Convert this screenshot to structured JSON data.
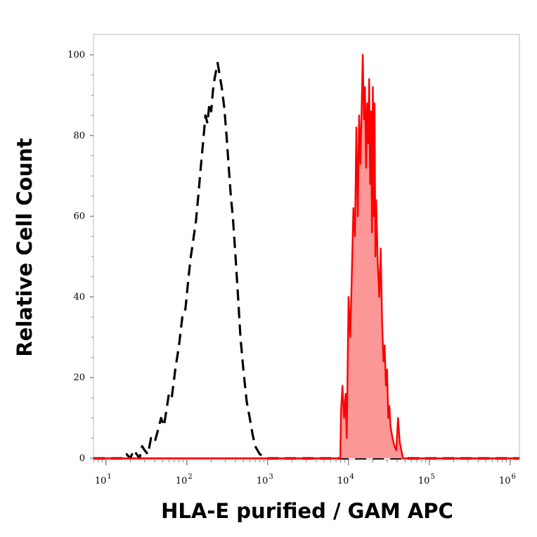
{
  "chart_data": {
    "type": "area",
    "xlabel": "HLA-E purified / GAM APC",
    "ylabel": "Relative Cell Count",
    "xscale": "log",
    "xlim": [
      7,
      1300000
    ],
    "ylim": [
      0,
      100
    ],
    "x_ticks": [
      {
        "base": "10",
        "exp": "1",
        "value": 10
      },
      {
        "base": "10",
        "exp": "2",
        "value": 100
      },
      {
        "base": "10",
        "exp": "3",
        "value": 1000
      },
      {
        "base": "10",
        "exp": "4",
        "value": 10000
      },
      {
        "base": "10",
        "exp": "5",
        "value": 100000
      },
      {
        "base": "10",
        "exp": "6",
        "value": 1000000
      }
    ],
    "y_ticks": [
      "0",
      "20",
      "40",
      "60",
      "80",
      "100"
    ],
    "grid": false,
    "series": [
      {
        "style": "dashed",
        "fill": false,
        "color": "#000000",
        "x": [
          7,
          17,
          18,
          20,
          22,
          24,
          26,
          28,
          30,
          33,
          36,
          40,
          44,
          48,
          52,
          56,
          60,
          65,
          72,
          80,
          88,
          96,
          105,
          112,
          120,
          130,
          140,
          150,
          160,
          170,
          180,
          190,
          200,
          210,
          220,
          240,
          255,
          270,
          290,
          310,
          330,
          350,
          370,
          400,
          430,
          460,
          500,
          550,
          600,
          650,
          700,
          800,
          900,
          1000,
          1300000
        ],
        "y": [
          0,
          0,
          1,
          0,
          2,
          1,
          0,
          3,
          2,
          1,
          5,
          4,
          7,
          10,
          8,
          12,
          16,
          15,
          22,
          28,
          35,
          37,
          45,
          50,
          54,
          59,
          66,
          73,
          79,
          85,
          83,
          88,
          86,
          91,
          94,
          98,
          95,
          92,
          87,
          80,
          72,
          65,
          60,
          50,
          40,
          30,
          22,
          14,
          10,
          6,
          3,
          1,
          0.5,
          0,
          0
        ]
      },
      {
        "style": "solid",
        "fill": true,
        "color": "#ff0000",
        "fill_color": "#fb9797",
        "x": [
          7,
          7900,
          8100,
          8400,
          8800,
          9200,
          9500,
          10000,
          10500,
          11000,
          11500,
          12000,
          12500,
          13000,
          13500,
          14000,
          14500,
          15000,
          15500,
          16000,
          16500,
          17000,
          17500,
          18000,
          18500,
          19000,
          19500,
          20000,
          20500,
          21000,
          21500,
          22000,
          23000,
          24000,
          25000,
          26000,
          27000,
          28000,
          29000,
          30000,
          31000,
          32000,
          33000,
          35000,
          37000,
          39000,
          41000,
          43000,
          45000,
          47000,
          50000,
          53000,
          56000,
          60000,
          65000,
          1300000
        ],
        "y": [
          0,
          0,
          12,
          18,
          10,
          16,
          5,
          40,
          30,
          46,
          62,
          55,
          82,
          60,
          85,
          73,
          86,
          100,
          84,
          92,
          72,
          88,
          78,
          94,
          68,
          86,
          56,
          92,
          60,
          88,
          50,
          64,
          48,
          40,
          52,
          34,
          24,
          28,
          18,
          22,
          10,
          13,
          8,
          5,
          3,
          2,
          10,
          4,
          2,
          0,
          0,
          0,
          0,
          0,
          0,
          0
        ]
      }
    ]
  }
}
